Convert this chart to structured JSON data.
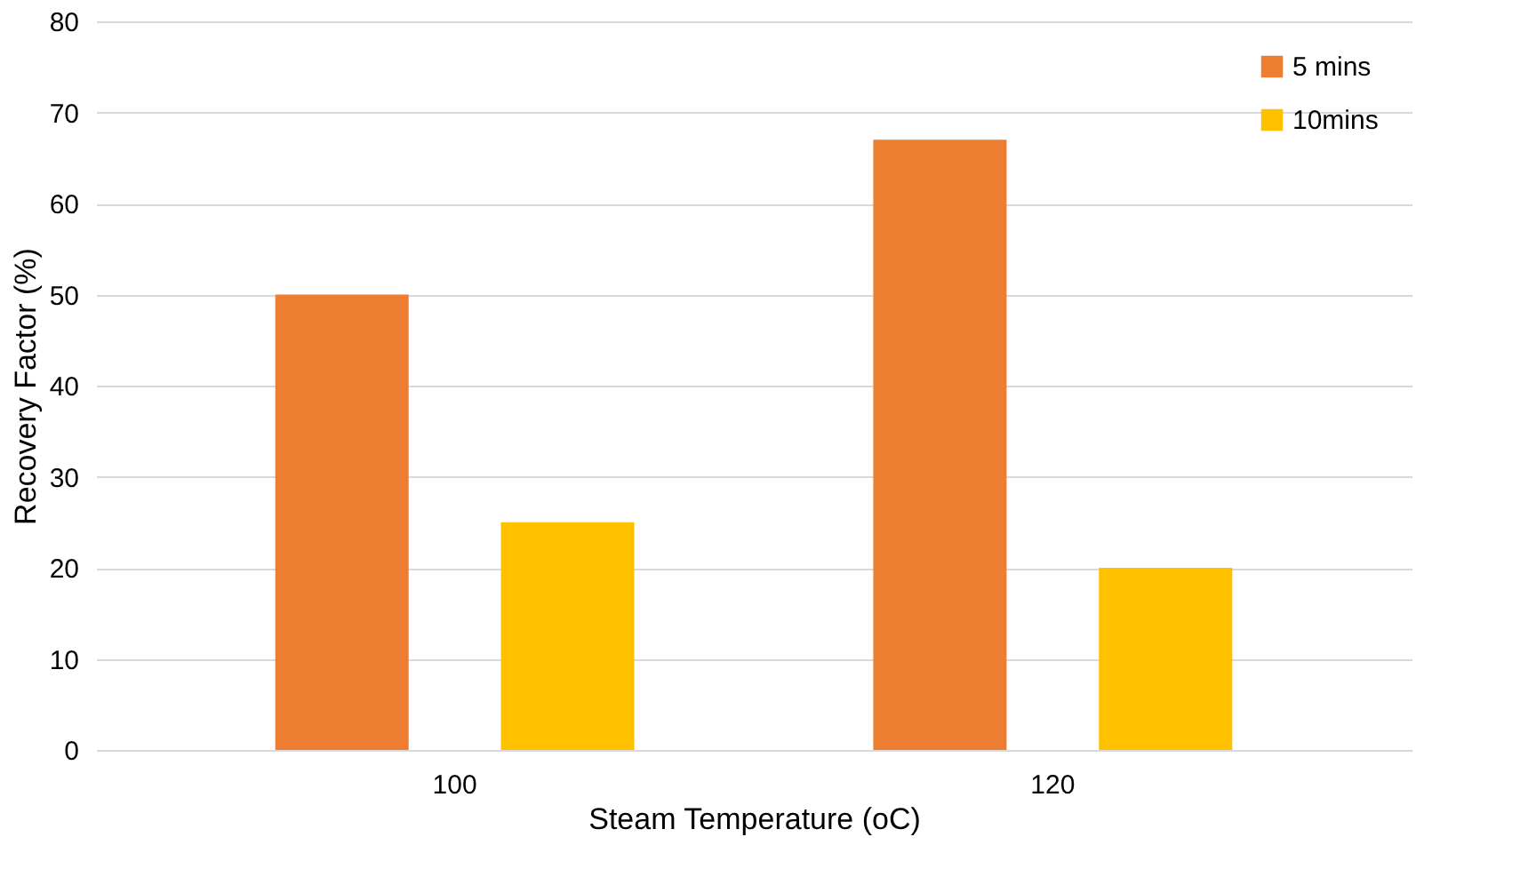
{
  "chart_data": {
    "type": "bar",
    "xlabel": "Steam Temperature (oC)",
    "ylabel": "Recovery Factor (%)",
    "categories": [
      "100",
      "120"
    ],
    "series": [
      {
        "name": "5 mins",
        "color": "#ed7d31",
        "values": [
          50,
          67
        ]
      },
      {
        "name": "10mins",
        "color": "#ffc000",
        "values": [
          25,
          20
        ]
      }
    ],
    "ylim": [
      0,
      80
    ],
    "yticks": [
      0,
      10,
      20,
      30,
      40,
      50,
      60,
      70,
      80
    ],
    "grid": "y",
    "legend": "top right"
  }
}
